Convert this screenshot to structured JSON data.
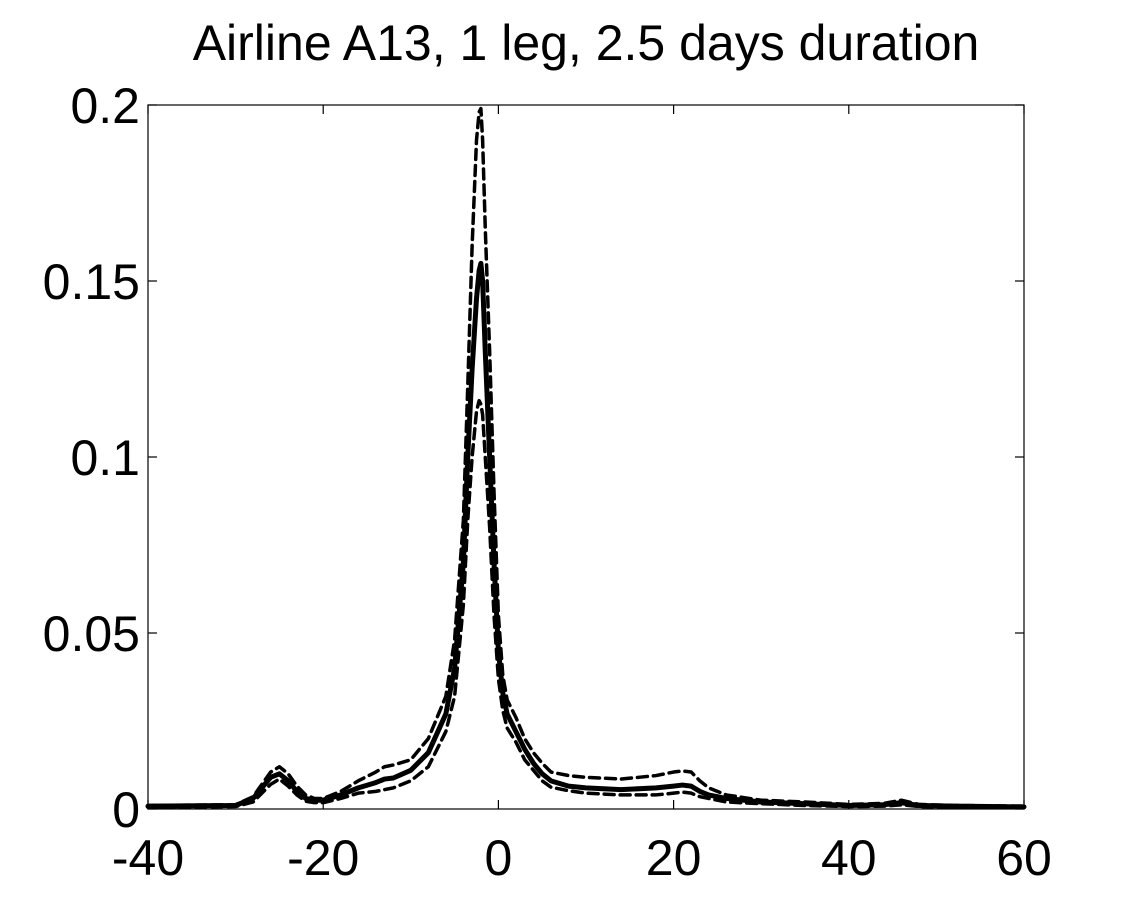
{
  "chart_data": {
    "type": "line",
    "title": "Airline A13, 1 leg, 2.5 days duration",
    "xlabel": "",
    "ylabel": "",
    "xlim": [
      -40,
      60
    ],
    "ylim": [
      0,
      0.2
    ],
    "xticks": [
      -40,
      -20,
      0,
      20,
      40,
      60
    ],
    "yticks": [
      0,
      0.05,
      0.1,
      0.15,
      0.2
    ],
    "xtick_labels": [
      "-40",
      "-20",
      "0",
      "20",
      "40",
      "60"
    ],
    "ytick_labels": [
      "0",
      "0.05",
      "0.1",
      "0.15",
      "0.2"
    ],
    "grid": false,
    "legend": "none",
    "series": [
      {
        "style": "solid",
        "color": "#000000",
        "x": [
          -40,
          -30,
          -28,
          -27,
          -26,
          -25,
          -24,
          -23,
          -22,
          -21,
          -20,
          -18,
          -16,
          -14,
          -13,
          -12,
          -10,
          -8,
          -6,
          -5,
          -4,
          -3.5,
          -3,
          -2.5,
          -2.2,
          -2,
          -1.8,
          -1.5,
          -1,
          -0.5,
          0,
          0.5,
          1,
          2,
          3,
          4,
          5,
          6,
          8,
          10,
          14,
          18,
          20,
          21,
          22,
          23,
          24,
          26,
          30,
          35,
          40,
          44,
          46,
          48,
          52,
          56,
          60
        ],
        "y": [
          0.0008,
          0.001,
          0.003,
          0.006,
          0.009,
          0.01,
          0.008,
          0.005,
          0.003,
          0.0025,
          0.0025,
          0.004,
          0.006,
          0.0075,
          0.0085,
          0.0088,
          0.011,
          0.016,
          0.027,
          0.04,
          0.07,
          0.1,
          0.125,
          0.145,
          0.153,
          0.155,
          0.15,
          0.13,
          0.1,
          0.07,
          0.045,
          0.033,
          0.027,
          0.022,
          0.017,
          0.013,
          0.01,
          0.008,
          0.0065,
          0.006,
          0.0055,
          0.006,
          0.0065,
          0.0068,
          0.0065,
          0.005,
          0.004,
          0.003,
          0.002,
          0.0015,
          0.001,
          0.0012,
          0.0018,
          0.001,
          0.0008,
          0.0007,
          0.0006
        ]
      },
      {
        "style": "dashed",
        "color": "#000000",
        "x": [
          -40,
          -30,
          -28,
          -27,
          -26,
          -25,
          -24,
          -23,
          -22,
          -21,
          -20,
          -18,
          -16,
          -14,
          -13,
          -12,
          -10,
          -8,
          -6,
          -5,
          -4,
          -3.5,
          -3,
          -2.5,
          -2.2,
          -2,
          -1.8,
          -1.5,
          -1,
          -0.5,
          0,
          0.5,
          1,
          2,
          3,
          4,
          5,
          6,
          8,
          10,
          14,
          18,
          20,
          21,
          22,
          23,
          24,
          26,
          30,
          35,
          40,
          44,
          46,
          48,
          52,
          56,
          60
        ],
        "y": [
          0.001,
          0.0012,
          0.0035,
          0.007,
          0.0105,
          0.012,
          0.01,
          0.0065,
          0.004,
          0.003,
          0.003,
          0.005,
          0.008,
          0.0105,
          0.012,
          0.0125,
          0.014,
          0.02,
          0.032,
          0.048,
          0.082,
          0.12,
          0.16,
          0.19,
          0.198,
          0.199,
          0.19,
          0.165,
          0.13,
          0.09,
          0.055,
          0.038,
          0.031,
          0.026,
          0.02,
          0.016,
          0.013,
          0.0105,
          0.0095,
          0.009,
          0.0085,
          0.0095,
          0.0105,
          0.0108,
          0.0105,
          0.008,
          0.006,
          0.004,
          0.0025,
          0.002,
          0.0013,
          0.0016,
          0.0025,
          0.0013,
          0.001,
          0.0009,
          0.0008
        ]
      },
      {
        "style": "dashed",
        "color": "#000000",
        "x": [
          -40,
          -30,
          -28,
          -27,
          -26,
          -25,
          -24,
          -23,
          -22,
          -21,
          -20,
          -18,
          -16,
          -14,
          -13,
          -12,
          -10,
          -8,
          -6,
          -5,
          -4,
          -3.5,
          -3,
          -2.5,
          -2.2,
          -2,
          -1.8,
          -1.5,
          -1,
          -0.5,
          0,
          0.5,
          1,
          2,
          3,
          4,
          5,
          6,
          8,
          10,
          14,
          18,
          20,
          21,
          22,
          23,
          24,
          26,
          30,
          35,
          40,
          44,
          46,
          48,
          52,
          56,
          60
        ],
        "y": [
          0.0005,
          0.0007,
          0.002,
          0.0045,
          0.007,
          0.0085,
          0.0065,
          0.004,
          0.0022,
          0.0018,
          0.0018,
          0.003,
          0.0045,
          0.005,
          0.0055,
          0.006,
          0.008,
          0.012,
          0.022,
          0.032,
          0.058,
          0.082,
          0.1,
          0.113,
          0.116,
          0.115,
          0.112,
          0.1,
          0.08,
          0.055,
          0.037,
          0.028,
          0.023,
          0.019,
          0.014,
          0.011,
          0.008,
          0.0062,
          0.0052,
          0.0045,
          0.004,
          0.004,
          0.0045,
          0.0048,
          0.0045,
          0.0035,
          0.003,
          0.002,
          0.0015,
          0.001,
          0.0007,
          0.0008,
          0.0012,
          0.0007,
          0.0005,
          0.0004,
          0.0004
        ]
      }
    ]
  }
}
